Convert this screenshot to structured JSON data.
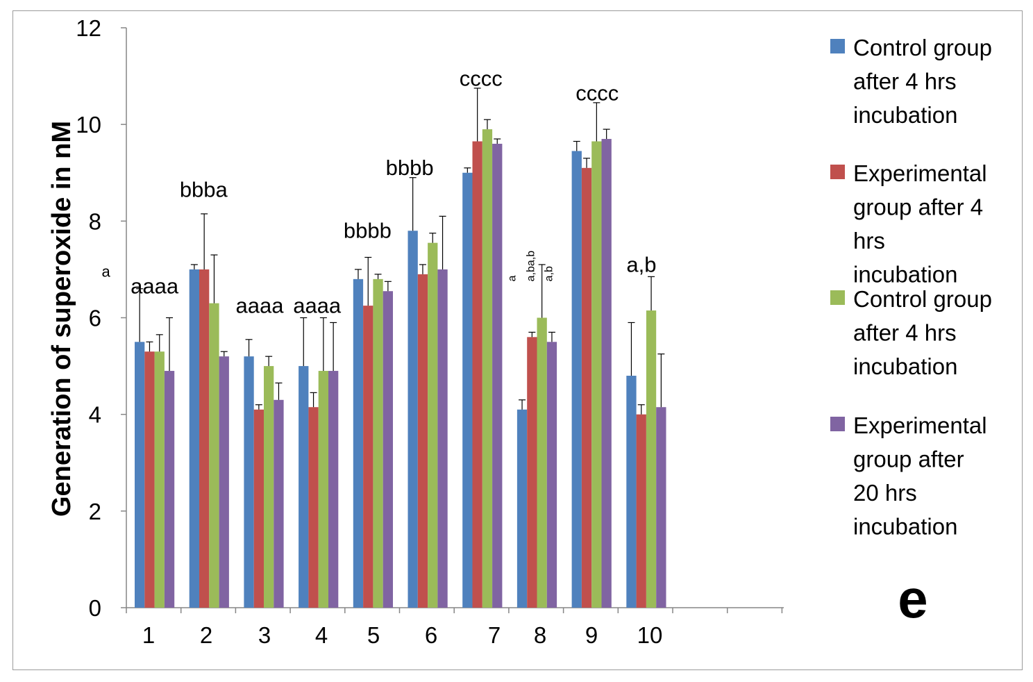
{
  "chart_data": {
    "type": "bar",
    "ylabel": "Generation of superoxide in nM",
    "ylim": [
      0,
      12
    ],
    "yticks": [
      "0",
      "2",
      "4",
      "6",
      "8",
      "10",
      "12"
    ],
    "categories": [
      "1",
      "2",
      "3",
      "4",
      "5",
      "6",
      "7",
      "8",
      "9",
      "10"
    ],
    "series": [
      {
        "name": "Control group after 4 hrs incubation",
        "color": "#4f81bd",
        "values": [
          5.5,
          7.0,
          5.2,
          5.0,
          6.8,
          7.8,
          9.0,
          4.1,
          9.45,
          4.8
        ],
        "errors": [
          1.1,
          0.1,
          0.35,
          1.0,
          0.2,
          1.1,
          0.1,
          0.2,
          0.2,
          1.1
        ]
      },
      {
        "name": "Experimental group after 4 hrs incubation",
        "color": "#c0504d",
        "values": [
          5.3,
          7.0,
          4.1,
          4.15,
          6.25,
          6.9,
          9.65,
          5.6,
          9.1,
          4.0
        ],
        "errors": [
          0.2,
          1.15,
          0.1,
          0.3,
          1.0,
          0.2,
          1.1,
          0.1,
          0.2,
          0.2
        ]
      },
      {
        "name": "Control group after 4 hrs incubation",
        "color": "#9bbb59",
        "values": [
          5.3,
          6.3,
          5.0,
          4.9,
          6.8,
          7.55,
          9.9,
          6.0,
          9.65,
          6.15
        ],
        "errors": [
          0.35,
          1.0,
          0.2,
          1.1,
          0.1,
          0.2,
          0.2,
          1.1,
          0.8,
          0.7
        ]
      },
      {
        "name": "Experimental group after 20 hrs incubation",
        "color": "#8064a2",
        "values": [
          4.9,
          5.2,
          4.3,
          4.9,
          6.55,
          7.0,
          9.6,
          5.5,
          9.7,
          4.15
        ],
        "errors": [
          1.1,
          0.1,
          0.35,
          1.0,
          0.2,
          1.1,
          0.1,
          0.2,
          0.2,
          1.1
        ]
      }
    ],
    "annotations": [
      {
        "text": "a",
        "category": 0,
        "y": 6.85,
        "size": "small",
        "offset": -70
      },
      {
        "text": "aaaa",
        "category": 0,
        "y": 6.5,
        "size": "large",
        "offset": 0
      },
      {
        "text": "bbba",
        "category": 1,
        "y": 8.5,
        "size": "large",
        "offset": -8
      },
      {
        "text": "aaaa",
        "category": 2,
        "y": 6.1,
        "size": "large",
        "offset": -6
      },
      {
        "text": "aaaa",
        "category": 3,
        "y": 6.1,
        "size": "large",
        "offset": -2
      },
      {
        "text": "bbbb",
        "category": 4,
        "y": 7.65,
        "size": "large",
        "offset": -8
      },
      {
        "text": "bbbb",
        "category": 5,
        "y": 8.95,
        "size": "large",
        "offset": -26
      },
      {
        "text": "cccc",
        "category": 6,
        "y": 10.8,
        "size": "large",
        "offset": -2
      },
      {
        "text": "a",
        "category": 7,
        "y": 6.75,
        "size": "small-rotated",
        "offset": -36
      },
      {
        "text": "a,ba,b",
        "category": 7,
        "y": 6.75,
        "size": "small-rotated",
        "offset": -9
      },
      {
        "text": "a,b",
        "category": 7,
        "y": 6.75,
        "size": "small-rotated",
        "offset": 17
      },
      {
        "text": "cccc",
        "category": 8,
        "y": 10.5,
        "size": "large",
        "offset": 8
      },
      {
        "text": "a,b",
        "category": 9,
        "y": 6.95,
        "size": "large",
        "offset": -7
      }
    ],
    "legend_position": "right",
    "grid": false,
    "panel_label": "e"
  }
}
